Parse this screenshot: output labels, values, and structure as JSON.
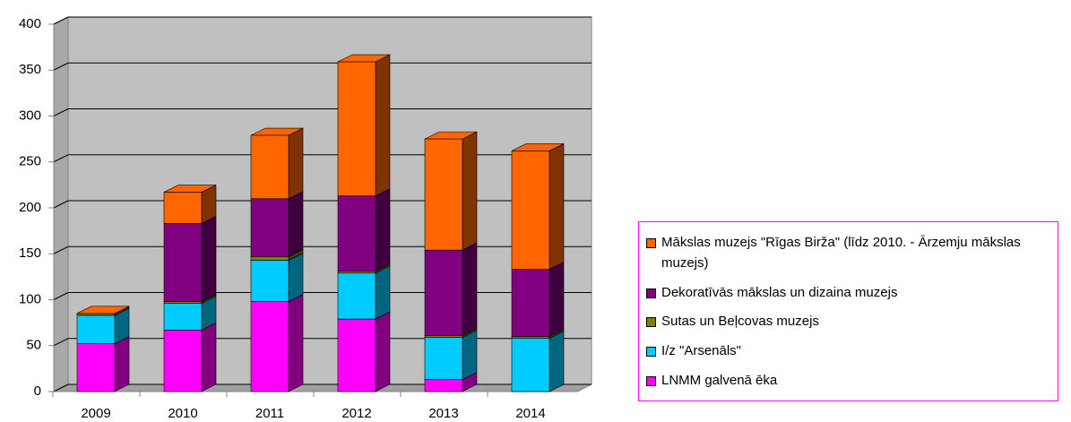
{
  "chart_data": {
    "type": "bar3d_stacked",
    "categories": [
      "2009",
      "2010",
      "2011",
      "2012",
      "2013",
      "2014"
    ],
    "series": [
      {
        "name": "LNMM galvenā ēka",
        "color": "#ff00ff",
        "values": [
          52,
          67,
          98,
          79,
          13,
          0
        ]
      },
      {
        "name": "I/z \"Arsenāls\"",
        "color": "#00ccff",
        "values": [
          31,
          29,
          45,
          50,
          46,
          58
        ]
      },
      {
        "name": "Sutas un Beļcovas muzejs",
        "color": "#808000",
        "values": [
          2,
          2,
          4,
          2,
          2,
          2
        ]
      },
      {
        "name": "Dekoratīvās mākslas un dizaina muzejs",
        "color": "#800080",
        "values": [
          0,
          85,
          63,
          82,
          93,
          73
        ]
      },
      {
        "name": "Mākslas muzejs \"Rīgas Birža\" (līdz 2010. - Ārzemju mākslas muzejs)",
        "color": "#ff6600",
        "values": [
          0,
          34,
          69,
          146,
          121,
          129
        ]
      }
    ],
    "ylim": [
      0,
      400
    ],
    "yticks": [
      0,
      50,
      100,
      150,
      200,
      250,
      300,
      350,
      400
    ],
    "grid": true
  }
}
